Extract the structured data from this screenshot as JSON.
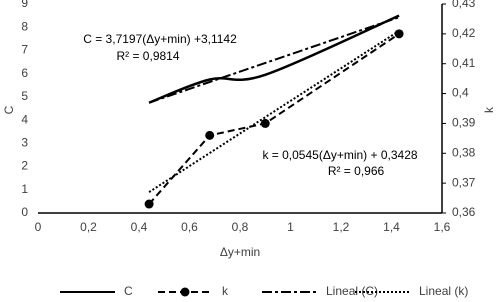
{
  "chart_data": {
    "type": "line",
    "xlabel": "Δy+min",
    "ylabel": "C",
    "y2label": "k",
    "xlim": [
      0,
      1.6
    ],
    "xticks": [
      0,
      {
        "value": 0.2,
        "label": "0,2"
      },
      {
        "value": 0.4,
        "label": "0,4"
      },
      {
        "value": 0.6,
        "label": "0,6"
      },
      {
        "value": 0.8,
        "label": "0,8"
      },
      1,
      {
        "value": 1.2,
        "label": "1,2"
      },
      {
        "value": 1.4,
        "label": "1,4"
      },
      {
        "value": 1.6,
        "label": "1,6"
      }
    ],
    "ylim": [
      0,
      9
    ],
    "yticks": [
      0,
      1,
      2,
      3,
      4,
      5,
      6,
      7,
      8,
      9
    ],
    "y2lim": [
      0.36,
      0.43
    ],
    "y2ticks": [
      {
        "value": 0.36,
        "label": "0,36"
      },
      {
        "value": 0.37,
        "label": "0,37"
      },
      {
        "value": 0.38,
        "label": "0,38"
      },
      {
        "value": 0.39,
        "label": "0,39"
      },
      {
        "value": 0.4,
        "label": "0,4"
      },
      {
        "value": 0.41,
        "label": "0,41"
      },
      {
        "value": 0.42,
        "label": "0,42"
      },
      {
        "value": 0.43,
        "label": "0,43"
      }
    ],
    "series": [
      {
        "name": "C",
        "color": "#000000",
        "style": "solid",
        "smooth": true,
        "x": [
          0.44,
          0.68,
          0.9,
          1.43
        ],
        "values": [
          4.75,
          5.75,
          5.95,
          8.5
        ]
      },
      {
        "name": "k",
        "color": "#000000",
        "style": "dashed",
        "marker": "circle",
        "axis": "y2",
        "x": [
          0.44,
          0.68,
          0.9,
          1.43
        ],
        "values": [
          0.363,
          0.386,
          0.39,
          0.42
        ]
      },
      {
        "name": "Lineal (C)",
        "color": "#000000",
        "style": "dashdot",
        "x": [
          0.44,
          1.43
        ],
        "values": [
          4.75,
          8.43
        ]
      },
      {
        "name": "Lineal (k)",
        "color": "#000000",
        "style": "dotted",
        "axis": "y2",
        "x": [
          0.44,
          1.43
        ],
        "values": [
          0.367,
          0.421
        ]
      }
    ],
    "annotations": [
      "C = 3,7197(Δy+min) +3,1142",
      "R² = 0,9814",
      "k = 0,0545(Δy+min) + 0,3428",
      "R² = 0,966"
    ],
    "legend": "bottom"
  }
}
